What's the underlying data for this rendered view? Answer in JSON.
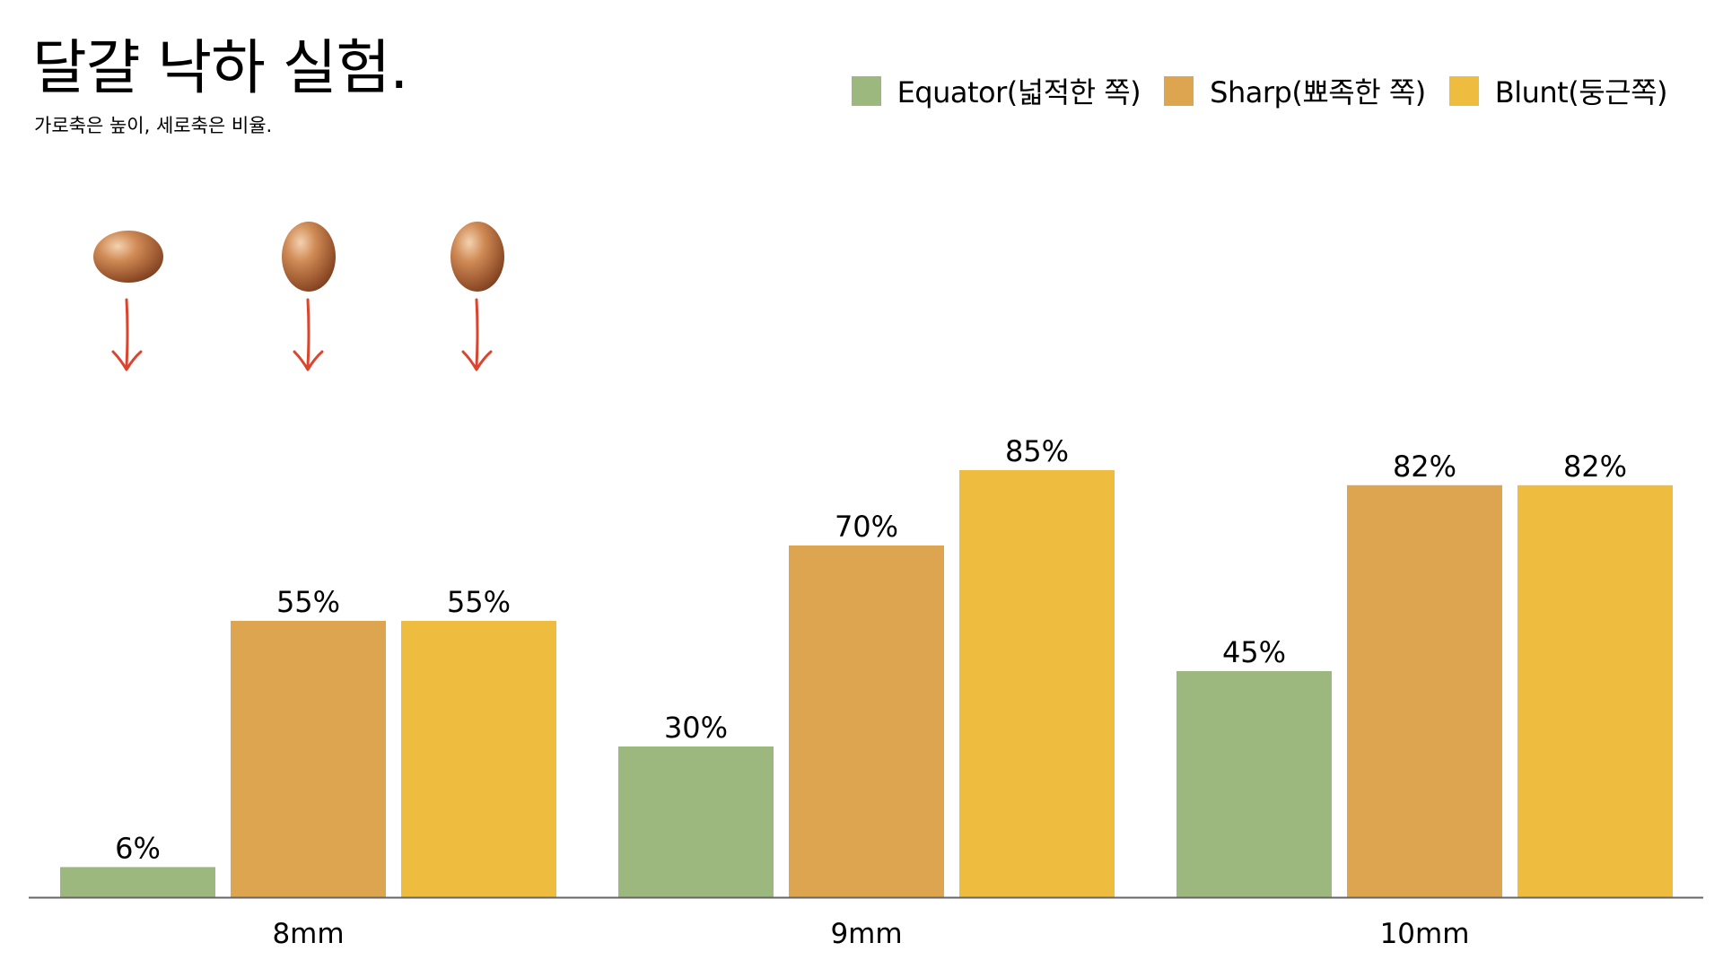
{
  "page": {
    "title": "달걀 낙하 실험.",
    "subtitle": "가로축은 높이, 세로축은 비율."
  },
  "legend": [
    {
      "label": "Equator(넓적한 쪽)",
      "color": "#9db87f"
    },
    {
      "label": "Sharp(뾰족한 쪽)",
      "color": "#dea550"
    },
    {
      "label": "Blunt(둥근쪽)",
      "color": "#eebd3f"
    }
  ],
  "icons": {
    "egg": "egg-icon",
    "arrow": "red-down-arrow-icon"
  },
  "chart_data": {
    "type": "bar",
    "title": "달걀 낙하 실험.",
    "subtitle": "가로축은 높이, 세로축은 비율.",
    "categories": [
      "8mm",
      "9mm",
      "10mm"
    ],
    "series": [
      {
        "name": "Equator(넓적한 쪽)",
        "color": "#9db87f",
        "values": [
          6,
          30,
          45
        ],
        "labels": [
          "6%",
          "30%",
          "45%"
        ]
      },
      {
        "name": "Sharp(뾰족한 쪽)",
        "color": "#dea550",
        "values": [
          55,
          70,
          82
        ],
        "labels": [
          "55%",
          "70%",
          "82%"
        ]
      },
      {
        "name": "Blunt(둥근쪽)",
        "color": "#eebd3f",
        "values": [
          55,
          85,
          82
        ],
        "labels": [
          "55%",
          "85%",
          "82%"
        ]
      }
    ],
    "ylim": [
      0,
      100
    ],
    "grid": false,
    "legend_position": "top-right",
    "axis_color": "#666666"
  }
}
